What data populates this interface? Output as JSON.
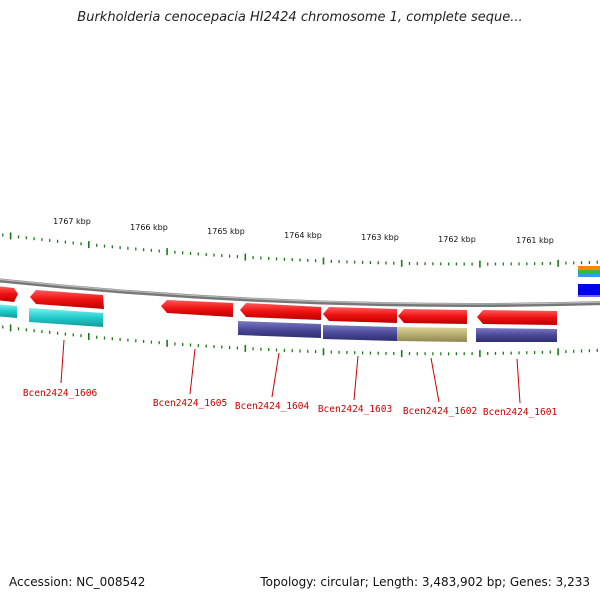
{
  "title": "Burkholderia cenocepacia HI2424 chromosome 1, complete seque...",
  "ruler": {
    "ticks": [
      {
        "label": "1767 kbp"
      },
      {
        "label": "1766 kbp"
      },
      {
        "label": "1765 kbp"
      },
      {
        "label": "1764 kbp"
      },
      {
        "label": "1763 kbp"
      },
      {
        "label": "1762 kbp"
      },
      {
        "label": "1761 kbp"
      }
    ]
  },
  "genes": [
    {
      "label": "Bcen2424_1606"
    },
    {
      "label": "Bcen2424_1605"
    },
    {
      "label": "Bcen2424_1604"
    },
    {
      "label": "Bcen2424_1603"
    },
    {
      "label": "Bcen2424_1602"
    },
    {
      "label": "Bcen2424_1601"
    }
  ],
  "colors": {
    "gene": "#ee1111",
    "backbone": "#888888",
    "tick": "#1a7a1a",
    "cog_cyan": "#22cccc",
    "cog_navy": "#4a4a99",
    "cog_khaki": "#b8ae70",
    "label": "#cc0000"
  },
  "footer": {
    "accession": "Accession: NC_008542",
    "summary": "Topology: circular; Length: 3,483,902 bp; Genes: 3,233"
  }
}
